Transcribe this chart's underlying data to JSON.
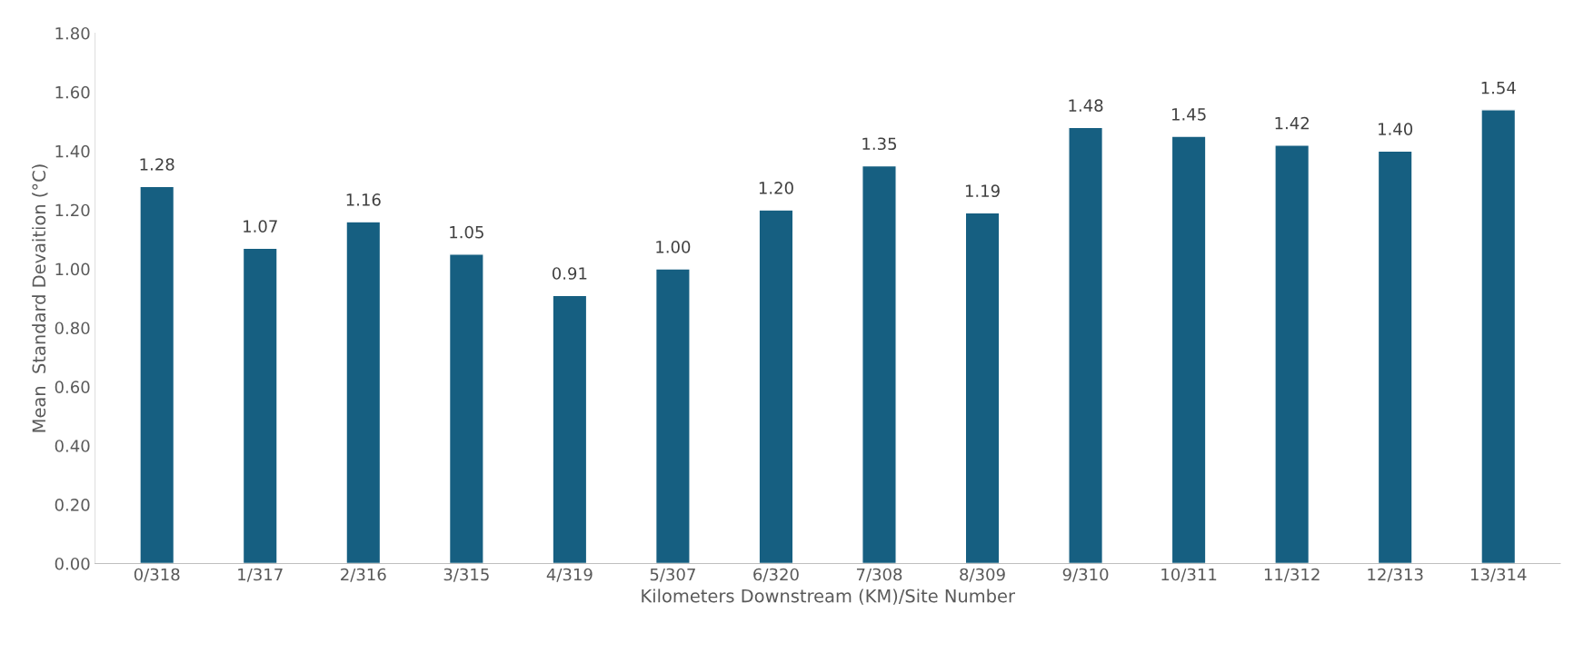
{
  "chart_data": {
    "type": "bar",
    "xlabel": "Kilometers Downstream (KM)/Site Number",
    "ylabel": "Mean  Standard Devaition (°C)",
    "categories": [
      "0/318",
      "1/317",
      "2/316",
      "3/315",
      "4/319",
      "5/307",
      "6/320",
      "7/308",
      "8/309",
      "9/310",
      "10/311",
      "11/312",
      "12/313",
      "13/314"
    ],
    "values": [
      1.28,
      1.07,
      1.16,
      1.05,
      0.91,
      1.0,
      1.2,
      1.35,
      1.19,
      1.48,
      1.45,
      1.42,
      1.4,
      1.54
    ],
    "value_labels": [
      "1.28",
      "1.07",
      "1.16",
      "1.05",
      "0.91",
      "1.00",
      "1.20",
      "1.35",
      "1.19",
      "1.48",
      "1.45",
      "1.42",
      "1.40",
      "1.54"
    ],
    "color": "#165f81",
    "ylim": [
      0,
      1.8
    ],
    "yticks": [
      {
        "value": 0,
        "label": "0.00"
      },
      {
        "value": 0.2,
        "label": "0.20"
      },
      {
        "value": 0.4,
        "label": "0.40"
      },
      {
        "value": 0.6,
        "label": "0.60"
      },
      {
        "value": 0.8,
        "label": "0.80"
      },
      {
        "value": 1.0,
        "label": "1.00"
      },
      {
        "value": 1.2,
        "label": "1.20"
      },
      {
        "value": 1.4,
        "label": "1.40"
      },
      {
        "value": 1.6,
        "label": "1.60"
      },
      {
        "value": 1.8,
        "label": "1.80"
      }
    ],
    "grid": false,
    "legend": false
  }
}
